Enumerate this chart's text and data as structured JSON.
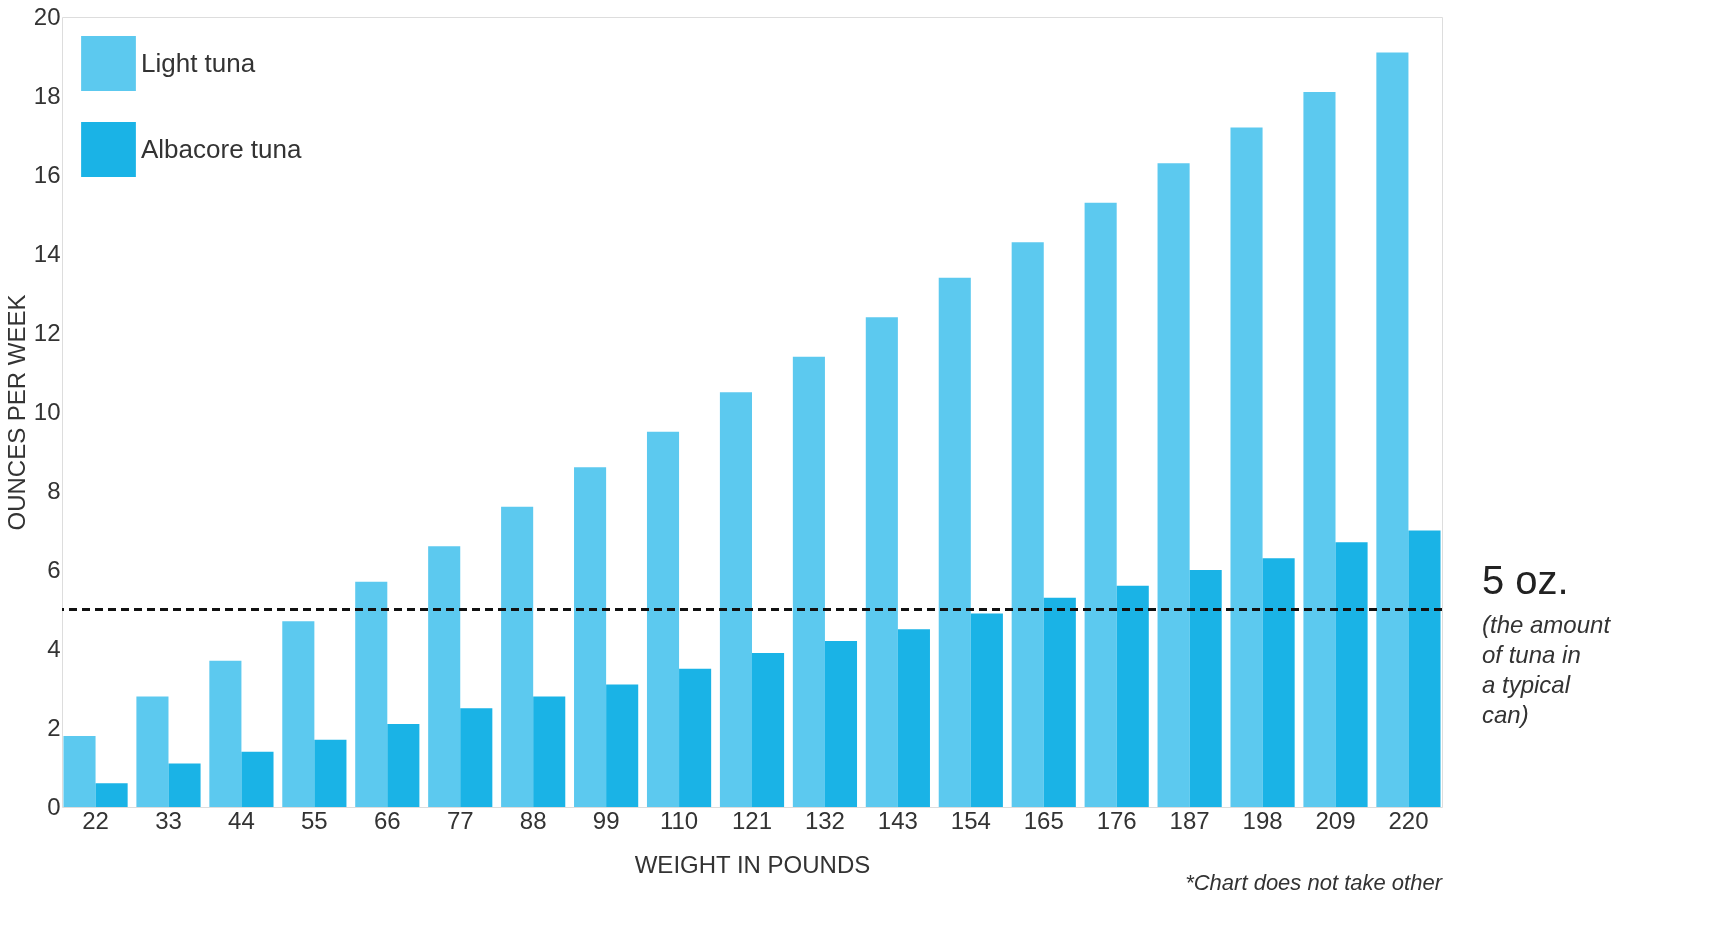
{
  "chart_data": {
    "type": "bar",
    "xlabel": "WEIGHT IN POUNDS",
    "ylabel": "OUNCES PER WEEK",
    "categories": [
      "22",
      "33",
      "44",
      "55",
      "66",
      "77",
      "88",
      "99",
      "110",
      "121",
      "132",
      "143",
      "154",
      "165",
      "176",
      "187",
      "198",
      "209",
      "220"
    ],
    "series": [
      {
        "name": "Light tuna",
        "color": "#5cc9ef",
        "values": [
          1.8,
          2.8,
          3.7,
          4.7,
          5.7,
          6.6,
          7.6,
          8.6,
          9.5,
          10.5,
          11.4,
          12.4,
          13.4,
          14.3,
          15.3,
          16.3,
          17.2,
          18.1,
          19.1
        ]
      },
      {
        "name": "Albacore tuna",
        "color": "#1ab3e6",
        "values": [
          0.6,
          1.1,
          1.4,
          1.7,
          2.1,
          2.5,
          2.8,
          3.1,
          3.5,
          3.9,
          4.2,
          4.5,
          4.9,
          5.3,
          5.6,
          6.0,
          6.3,
          6.7,
          7.0
        ]
      }
    ],
    "ylim": [
      0,
      20
    ],
    "yticks": [
      0,
      2,
      4,
      6,
      8,
      10,
      12,
      14,
      16,
      18,
      20
    ],
    "grid": false,
    "legend": "top left",
    "ref_lines": [
      {
        "axis": "y",
        "value": 5,
        "label": "5 oz.",
        "color": "#111111",
        "line_style": "dashed"
      }
    ],
    "annotations": [
      "(the amount of tuna in a typical can)",
      "*Chart does not take other"
    ]
  }
}
